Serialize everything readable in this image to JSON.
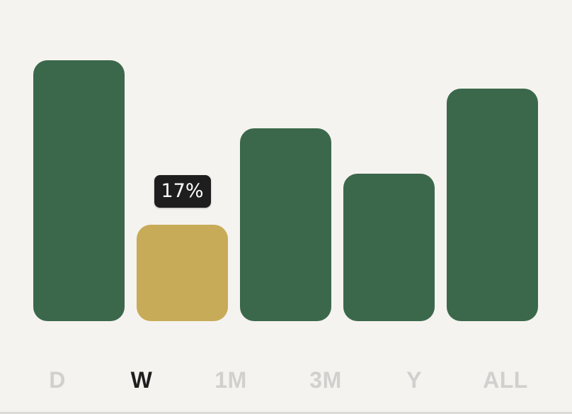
{
  "colors": {
    "bar": "#3b684b",
    "bar_selected": "#c8ab58",
    "tooltip_bg": "#1e1e1e",
    "tab_inactive": "#d2d0cf",
    "tab_active": "#1f1f1f",
    "background": "#f5f3ef"
  },
  "tabs": [
    {
      "label": "D",
      "active": false
    },
    {
      "label": "W",
      "active": true
    },
    {
      "label": "1M",
      "active": false
    },
    {
      "label": "3M",
      "active": false
    },
    {
      "label": "Y",
      "active": false
    },
    {
      "label": "ALL",
      "active": false
    }
  ],
  "chart_data": {
    "type": "bar",
    "categories": [
      "D",
      "W",
      "1M",
      "3M",
      "Y"
    ],
    "values": [
      46,
      17,
      34,
      26,
      41
    ],
    "unit": "%",
    "selected_index": 1,
    "tooltip": "17%",
    "ylim": [
      0,
      50
    ]
  }
}
